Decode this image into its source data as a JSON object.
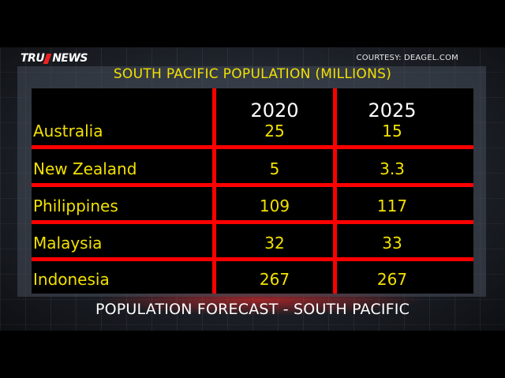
{
  "broadcast": {
    "logo_left": "TRU",
    "logo_right": "NEWS",
    "courtesy": "COURTESY:  DEAGEL.COM",
    "caption": "POPULATION FORECAST - SOUTH PACIFIC"
  },
  "colors": {
    "grid_red": "#ff0000",
    "text_yellow": "#f2e100",
    "header_white": "#ffffff"
  },
  "chart_data": {
    "type": "table",
    "title": "SOUTH PACIFIC POPULATION (MILLIONS)",
    "columns": [
      "2020",
      "2025"
    ],
    "rows": [
      {
        "country": "Australia",
        "values": [
          "25",
          "15"
        ]
      },
      {
        "country": "New Zealand",
        "values": [
          "5",
          "3.3"
        ]
      },
      {
        "country": "Philippines",
        "values": [
          "109",
          "117"
        ]
      },
      {
        "country": "Malaysia",
        "values": [
          "32",
          "33"
        ]
      },
      {
        "country": "Indonesia",
        "values": [
          "267",
          "267"
        ]
      }
    ]
  }
}
